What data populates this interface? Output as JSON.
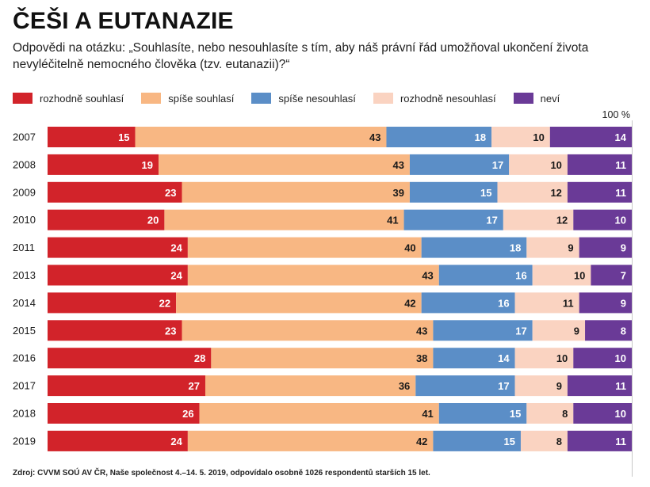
{
  "title": "ČEŠI A EUTANAZIE",
  "subtitle": "Odpovědi na otázku: „Souhlasíte, nebo nesouhlasíte s tím, aby náš právní řád umožňoval ukončení života nevyléčitelně nemocného člověka (tzv. eutanazii)?“",
  "scale_label": "100 %",
  "source": "Zdroj: CVVM SOÚ AV ČR, Naše společnost 4.–14. 5. 2019, odpovídalo osobně 1026 respondentů starších 15 let.",
  "legend": [
    {
      "label": "rozhodně souhlasí",
      "color": "#d2232a"
    },
    {
      "label": "spíše souhlasí",
      "color": "#f8b783"
    },
    {
      "label": "spíše nesouhlasí",
      "color": "#5b8ec7"
    },
    {
      "label": "rozhodně nesouhlasí",
      "color": "#fad3c1"
    },
    {
      "label": "neví",
      "color": "#6a3a97"
    }
  ],
  "chart_data": {
    "type": "bar",
    "orientation": "horizontal",
    "stacked": true,
    "categories": [
      "2007",
      "2008",
      "2009",
      "2010",
      "2011",
      "2013",
      "2014",
      "2015",
      "2016",
      "2017",
      "2018",
      "2019"
    ],
    "series": [
      {
        "name": "rozhodně souhlasí",
        "color": "#d2232a",
        "text_color": "#ffffff",
        "values": [
          15,
          19,
          23,
          20,
          24,
          24,
          22,
          23,
          28,
          27,
          26,
          24
        ]
      },
      {
        "name": "spíše souhlasí",
        "color": "#f8b783",
        "text_color": "#1a1a1a",
        "values": [
          43,
          43,
          39,
          41,
          40,
          43,
          42,
          43,
          38,
          36,
          41,
          42
        ]
      },
      {
        "name": "spíše nesouhlasí",
        "color": "#5b8ec7",
        "text_color": "#ffffff",
        "values": [
          18,
          17,
          15,
          17,
          18,
          16,
          16,
          17,
          14,
          17,
          15,
          15
        ]
      },
      {
        "name": "rozhodně nesouhlasí",
        "color": "#fad3c1",
        "text_color": "#1a1a1a",
        "values": [
          10,
          10,
          12,
          12,
          9,
          10,
          11,
          9,
          10,
          9,
          8,
          8
        ]
      },
      {
        "name": "neví",
        "color": "#6a3a97",
        "text_color": "#ffffff",
        "values": [
          14,
          11,
          11,
          10,
          9,
          7,
          9,
          8,
          10,
          11,
          10,
          11
        ]
      }
    ],
    "xlim": [
      0,
      100
    ],
    "title": "ČEŠI A EUTANAZIE"
  }
}
